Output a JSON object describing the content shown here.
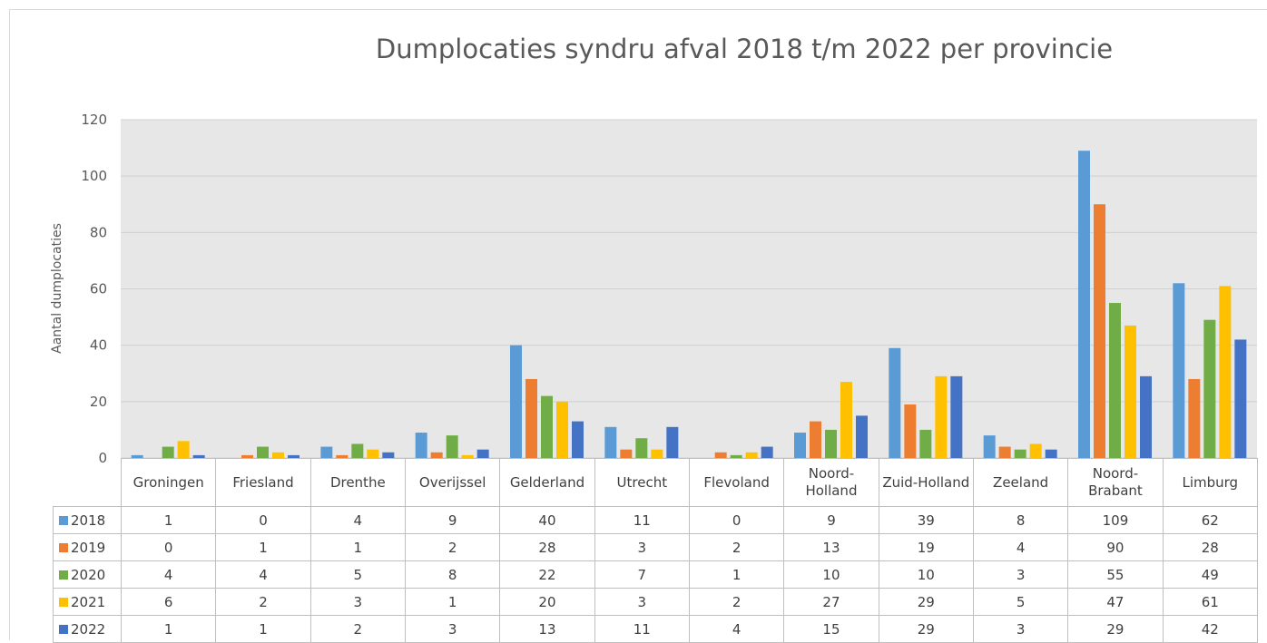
{
  "chart_data": {
    "type": "bar",
    "title": "Dumplocaties syndru afval 2018 t/m 2022 per provincie",
    "y_label": "Aantal dumplocaties",
    "categories": [
      "Groningen",
      "Friesland",
      "Drenthe",
      "Overijssel",
      "Gelderland",
      "Utrecht",
      "Flevoland",
      "Noord-Holland",
      "Zuid-Holland",
      "Zeeland",
      "Noord-Brabant",
      "Limburg"
    ],
    "series": [
      {
        "name": "2018",
        "color": "#5b9bd5",
        "values": [
          1,
          0,
          4,
          9,
          40,
          11,
          0,
          9,
          39,
          8,
          109,
          62
        ]
      },
      {
        "name": "2019",
        "color": "#ed7d31",
        "values": [
          0,
          1,
          1,
          2,
          28,
          3,
          2,
          13,
          19,
          4,
          90,
          28
        ]
      },
      {
        "name": "2020",
        "color": "#70ad47",
        "values": [
          4,
          4,
          5,
          8,
          22,
          7,
          1,
          10,
          10,
          3,
          55,
          49
        ]
      },
      {
        "name": "2021",
        "color": "#ffc000",
        "values": [
          6,
          2,
          3,
          1,
          20,
          3,
          2,
          27,
          29,
          5,
          47,
          61
        ]
      },
      {
        "name": "2022",
        "color": "#4472c4",
        "values": [
          1,
          1,
          2,
          3,
          13,
          11,
          4,
          15,
          29,
          3,
          29,
          42
        ]
      }
    ],
    "ylim": [
      0,
      120
    ],
    "yticks": [
      0,
      20,
      40,
      60,
      80,
      100,
      120
    ],
    "grid": true,
    "data_table": true
  }
}
